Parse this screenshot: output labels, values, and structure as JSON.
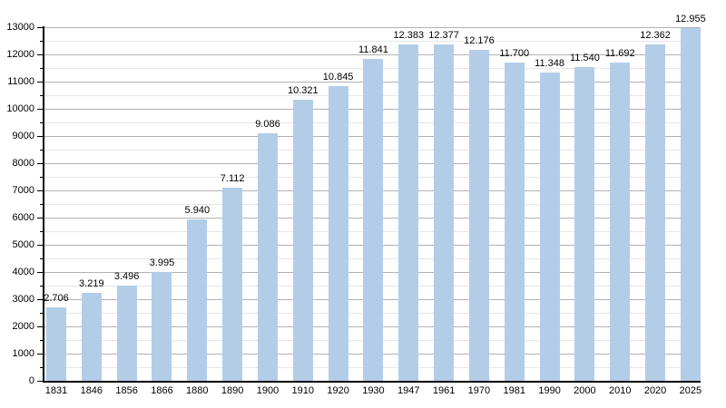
{
  "chart_data": {
    "type": "bar",
    "title": "",
    "xlabel": "",
    "ylabel": "",
    "categories": [
      "1831",
      "1846",
      "1856",
      "1866",
      "1880",
      "1890",
      "1900",
      "1910",
      "1920",
      "1930",
      "1947",
      "1961",
      "1970",
      "1981",
      "1990",
      "2000",
      "2010",
      "2020",
      "2025"
    ],
    "values": [
      2706,
      3219,
      3496,
      3995,
      5940,
      7112,
      9086,
      10321,
      10845,
      11841,
      12383,
      12377,
      12176,
      11700,
      11348,
      11540,
      11692,
      12362,
      12955
    ],
    "value_labels": [
      "2.706",
      "3.219",
      "3.496",
      "3.995",
      "5.940",
      "7.112",
      "9.086",
      "10.321",
      "10.845",
      "11.841",
      "12.383",
      "12.377",
      "12.176",
      "11.700",
      "11.348",
      "11.540",
      "11.692",
      "12.362",
      "12.955"
    ],
    "ylim": [
      0,
      13000
    ],
    "y_major_step": 1000,
    "y_minor_step": 500,
    "y_tick_labels": [
      "0",
      "1000",
      "2000",
      "3000",
      "4000",
      "5000",
      "6000",
      "7000",
      "8000",
      "9000",
      "10000",
      "11000",
      "12000",
      "13000"
    ],
    "grid": true,
    "legend": "none",
    "colors": {
      "bar_fill": "#b3cde8",
      "major_grid": "#b2b2b2",
      "minor_grid": "#e6e6e6",
      "axis": "#000000",
      "text": "#000000",
      "background": "#ffffff"
    }
  }
}
